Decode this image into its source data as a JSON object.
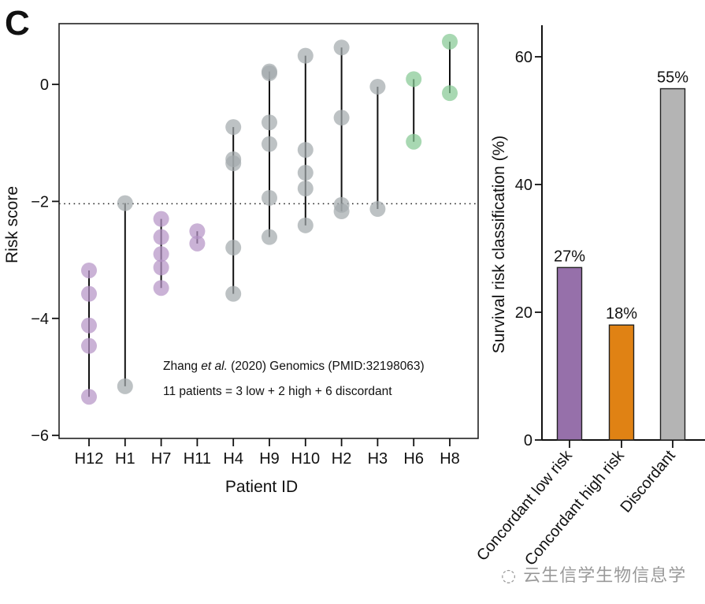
{
  "panel_label": "C",
  "watermark": "云生信学生物信息学",
  "chart_data": [
    {
      "type": "scatter",
      "subtype": "dot-range per patient",
      "title": "",
      "xlabel": "Patient ID",
      "ylabel": "Risk score",
      "ylim": [
        -6,
        1
      ],
      "yticks": [
        0,
        -2,
        -4,
        -6
      ],
      "ytick_labels": [
        "0",
        "−2",
        "−4",
        "−6"
      ],
      "threshold": {
        "value": -2.04,
        "style": "dotted"
      },
      "annotation": {
        "line1_pre": "Zhang ",
        "line1_italic": "et al.",
        "line1_post": " (2020) Genomics (PMID:32198063)",
        "line2": "11 patients = 3 low + 2 high + 6 discordant"
      },
      "group_colors": {
        "low": "#b694c6",
        "discordant": "#a4aaad",
        "high": "#86c994"
      },
      "categories": [
        "H12",
        "H1",
        "H7",
        "H11",
        "H4",
        "H9",
        "H10",
        "H2",
        "H3",
        "H6",
        "H8"
      ],
      "patients": [
        {
          "id": "H12",
          "group": "low",
          "values": [
            -3.18,
            -3.58,
            -4.12,
            -4.47,
            -5.34
          ]
        },
        {
          "id": "H1",
          "group": "discordant",
          "values": [
            -2.03,
            -5.16
          ]
        },
        {
          "id": "H7",
          "group": "low",
          "values": [
            -2.3,
            -2.61,
            -2.9,
            -3.13,
            -3.48
          ]
        },
        {
          "id": "H11",
          "group": "low",
          "values": [
            -2.51,
            -2.72
          ]
        },
        {
          "id": "H4",
          "group": "discordant",
          "values": [
            -0.73,
            -1.28,
            -1.35,
            -2.79,
            -3.58
          ]
        },
        {
          "id": "H9",
          "group": "discordant",
          "values": [
            0.22,
            0.19,
            -0.65,
            -1.02,
            -1.94,
            -2.61
          ]
        },
        {
          "id": "H10",
          "group": "discordant",
          "values": [
            0.49,
            -1.12,
            -1.51,
            -1.78,
            -2.41
          ]
        },
        {
          "id": "H2",
          "group": "discordant",
          "values": [
            0.63,
            -0.57,
            -2.06,
            -2.17
          ]
        },
        {
          "id": "H3",
          "group": "discordant",
          "values": [
            -0.04,
            -2.13
          ]
        },
        {
          "id": "H6",
          "group": "high",
          "values": [
            0.09,
            -0.98
          ]
        },
        {
          "id": "H8",
          "group": "high",
          "values": [
            0.73,
            -0.15
          ]
        }
      ]
    },
    {
      "type": "bar",
      "title": "",
      "xlabel": "",
      "ylabel": "Survival risk classification (%)",
      "ylim": [
        0,
        65
      ],
      "yticks": [
        0,
        20,
        40,
        60
      ],
      "categories": [
        "Concordant low risk",
        "Concordant high risk",
        "Discordant"
      ],
      "values": [
        27,
        18,
        55
      ],
      "data_labels": [
        "27%",
        "18%",
        "55%"
      ],
      "colors": [
        "#9670aa",
        "#e08214",
        "#b4b4b4"
      ]
    }
  ]
}
